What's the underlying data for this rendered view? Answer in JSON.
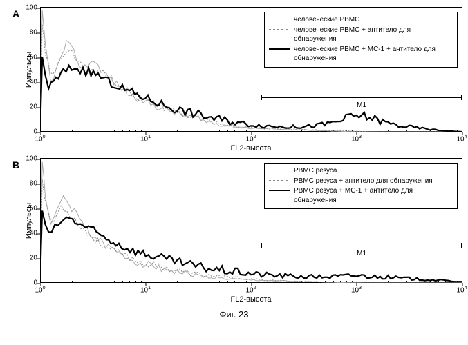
{
  "caption": "Фиг. 23",
  "panels": [
    {
      "label": "A",
      "ylabel": "Импульсы",
      "xlabel": "FL2-высота",
      "ylim": [
        0,
        100
      ],
      "ytick_step": 20,
      "xscale": "log",
      "xlim_exp": [
        0,
        4
      ],
      "marker": {
        "label": "M1",
        "x_start_exp": 2.1,
        "x_end_exp": 4.0,
        "y": 28
      },
      "legend": {
        "items": [
          {
            "label": "человеческие PBMC",
            "color": "#aaaaaa",
            "width": 1,
            "dash": "none"
          },
          {
            "label": "человеческие PBMC + антитело для обнаружения",
            "color": "#888888",
            "width": 1,
            "dash": "2,2"
          },
          {
            "label": "человеческие PBMC + MC-1 + антитело для обнаружения",
            "color": "#000000",
            "width": 2.2,
            "dash": "none"
          }
        ]
      },
      "series": [
        {
          "color": "#aaaaaa",
          "width": 1,
          "dash": "none",
          "points": [
            [
              0,
              0
            ],
            [
              0.02,
              95
            ],
            [
              0.05,
              70
            ],
            [
              0.1,
              40
            ],
            [
              0.18,
              55
            ],
            [
              0.25,
              72
            ],
            [
              0.32,
              64
            ],
            [
              0.4,
              50
            ],
            [
              0.5,
              58
            ],
            [
              0.6,
              48
            ],
            [
              0.7,
              40
            ],
            [
              0.85,
              30
            ],
            [
              1.0,
              24
            ],
            [
              1.2,
              18
            ],
            [
              1.4,
              12
            ],
            [
              1.6,
              8
            ],
            [
              1.8,
              5
            ],
            [
              2.0,
              3
            ],
            [
              2.3,
              2
            ],
            [
              2.6,
              1
            ],
            [
              3.0,
              0
            ],
            [
              3.5,
              0
            ],
            [
              4.0,
              0
            ]
          ]
        },
        {
          "color": "#888888",
          "width": 1,
          "dash": "2,2",
          "points": [
            [
              0,
              0
            ],
            [
              0.02,
              85
            ],
            [
              0.05,
              62
            ],
            [
              0.12,
              44
            ],
            [
              0.2,
              60
            ],
            [
              0.28,
              68
            ],
            [
              0.36,
              56
            ],
            [
              0.45,
              46
            ],
            [
              0.55,
              52
            ],
            [
              0.65,
              44
            ],
            [
              0.78,
              36
            ],
            [
              0.92,
              28
            ],
            [
              1.1,
              22
            ],
            [
              1.3,
              16
            ],
            [
              1.5,
              10
            ],
            [
              1.7,
              7
            ],
            [
              1.9,
              4
            ],
            [
              2.1,
              3
            ],
            [
              2.4,
              2
            ],
            [
              2.8,
              1
            ],
            [
              3.2,
              0
            ],
            [
              3.6,
              0
            ],
            [
              4.0,
              0
            ]
          ]
        },
        {
          "color": "#000000",
          "width": 2.2,
          "dash": "none",
          "points": [
            [
              0,
              0
            ],
            [
              0.02,
              60
            ],
            [
              0.08,
              35
            ],
            [
              0.15,
              42
            ],
            [
              0.22,
              48
            ],
            [
              0.3,
              52
            ],
            [
              0.38,
              50
            ],
            [
              0.46,
              48
            ],
            [
              0.55,
              46
            ],
            [
              0.65,
              40
            ],
            [
              0.78,
              35
            ],
            [
              0.92,
              30
            ],
            [
              1.1,
              24
            ],
            [
              1.3,
              18
            ],
            [
              1.5,
              14
            ],
            [
              1.7,
              10
            ],
            [
              1.9,
              7
            ],
            [
              2.1,
              5
            ],
            [
              2.3,
              4
            ],
            [
              2.5,
              4
            ],
            [
              2.7,
              6
            ],
            [
              2.85,
              9
            ],
            [
              2.95,
              12
            ],
            [
              3.05,
              13
            ],
            [
              3.15,
              11
            ],
            [
              3.25,
              8
            ],
            [
              3.4,
              5
            ],
            [
              3.6,
              3
            ],
            [
              3.8,
              1
            ],
            [
              4.0,
              0
            ]
          ]
        }
      ]
    },
    {
      "label": "B",
      "ylabel": "Импульсы",
      "xlabel": "FL2-высота",
      "ylim": [
        0,
        100
      ],
      "ytick_step": 20,
      "xscale": "log",
      "xlim_exp": [
        0,
        4
      ],
      "marker": {
        "label": "M1",
        "x_start_exp": 2.1,
        "x_end_exp": 4.0,
        "y": 30
      },
      "legend": {
        "items": [
          {
            "label": "PBMC резуса",
            "color": "#aaaaaa",
            "width": 1,
            "dash": "none"
          },
          {
            "label": "PBMC резуса + антитело для обнаружения",
            "color": "#888888",
            "width": 1,
            "dash": "2,2"
          },
          {
            "label": "PBMC резуса + MC-1 + антитело для обнаружения",
            "color": "#000000",
            "width": 2.2,
            "dash": "none"
          }
        ]
      },
      "series": [
        {
          "color": "#aaaaaa",
          "width": 1,
          "dash": "none",
          "points": [
            [
              0,
              0
            ],
            [
              0.02,
              95
            ],
            [
              0.05,
              72
            ],
            [
              0.1,
              45
            ],
            [
              0.16,
              58
            ],
            [
              0.22,
              70
            ],
            [
              0.3,
              60
            ],
            [
              0.4,
              48
            ],
            [
              0.5,
              38
            ],
            [
              0.62,
              30
            ],
            [
              0.78,
              22
            ],
            [
              0.95,
              16
            ],
            [
              1.15,
              12
            ],
            [
              1.35,
              8
            ],
            [
              1.55,
              5
            ],
            [
              1.8,
              3
            ],
            [
              2.1,
              2
            ],
            [
              2.5,
              1
            ],
            [
              3.0,
              0
            ],
            [
              3.5,
              0
            ],
            [
              4.0,
              0
            ]
          ]
        },
        {
          "color": "#888888",
          "width": 1,
          "dash": "2,2",
          "points": [
            [
              0,
              0
            ],
            [
              0.02,
              82
            ],
            [
              0.06,
              60
            ],
            [
              0.12,
              48
            ],
            [
              0.2,
              62
            ],
            [
              0.28,
              56
            ],
            [
              0.38,
              46
            ],
            [
              0.5,
              36
            ],
            [
              0.64,
              28
            ],
            [
              0.8,
              22
            ],
            [
              0.98,
              16
            ],
            [
              1.2,
              12
            ],
            [
              1.4,
              8
            ],
            [
              1.6,
              6
            ],
            [
              1.85,
              4
            ],
            [
              2.15,
              2
            ],
            [
              2.6,
              1
            ],
            [
              3.1,
              0
            ],
            [
              3.6,
              0
            ],
            [
              4.0,
              0
            ]
          ]
        },
        {
          "color": "#000000",
          "width": 2.2,
          "dash": "none",
          "points": [
            [
              0,
              0
            ],
            [
              0.02,
              58
            ],
            [
              0.08,
              38
            ],
            [
              0.14,
              44
            ],
            [
              0.2,
              50
            ],
            [
              0.28,
              52
            ],
            [
              0.36,
              48
            ],
            [
              0.46,
              44
            ],
            [
              0.58,
              38
            ],
            [
              0.72,
              32
            ],
            [
              0.88,
              26
            ],
            [
              1.05,
              22
            ],
            [
              1.25,
              18
            ],
            [
              1.45,
              14
            ],
            [
              1.65,
              11
            ],
            [
              1.85,
              9
            ],
            [
              2.05,
              7
            ],
            [
              2.25,
              6
            ],
            [
              2.5,
              5
            ],
            [
              2.75,
              5
            ],
            [
              3.0,
              6
            ],
            [
              3.2,
              5
            ],
            [
              3.4,
              4
            ],
            [
              3.6,
              3
            ],
            [
              3.8,
              2
            ],
            [
              4.0,
              1
            ]
          ]
        }
      ]
    }
  ],
  "colors": {
    "axis": "#000000",
    "background": "#ffffff"
  },
  "fontsize": {
    "axis_label": 11,
    "tick": 10,
    "panel_label": 14,
    "legend": 10,
    "caption": 13
  }
}
